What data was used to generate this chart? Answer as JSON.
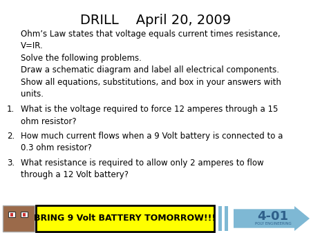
{
  "title_drill": "DRILL",
  "title_date": "April 20, 2009",
  "bg_color": "#ffffff",
  "text_color": "#000000",
  "intro_lines": [
    "Ohm’s Law states that voltage equals current times resistance,",
    "V=IR.",
    "Solve the following problems.",
    "Draw a schematic diagram and label all electrical components.",
    "Show all equations, substitutions, and box in your answers with",
    "units."
  ],
  "q1_lines": [
    "What is the voltage required to force 12 amperes through a 15",
    "ohm resistor?"
  ],
  "q2_lines": [
    "How much current flows when a 9 Volt battery is connected to a",
    "0.3 ohm resistor?"
  ],
  "q3_lines": [
    "What resistance is required to allow only 2 amperes to flow",
    "through a 12 Volt battery?"
  ],
  "banner_text": "BRING 9 Volt BATTERY TOMORROW!!!",
  "banner_bg": "#ffff00",
  "banner_border": "#000000",
  "arrow_color": "#7eb8d4",
  "arrow_text": "4-01",
  "arrow_subtext": "POLY ENGINEERING",
  "arrow_text_color": "#2e5f8a",
  "title_fontsize": 14,
  "body_fontsize": 8.5,
  "banner_fontsize": 9,
  "arrow_fontsize": 13
}
